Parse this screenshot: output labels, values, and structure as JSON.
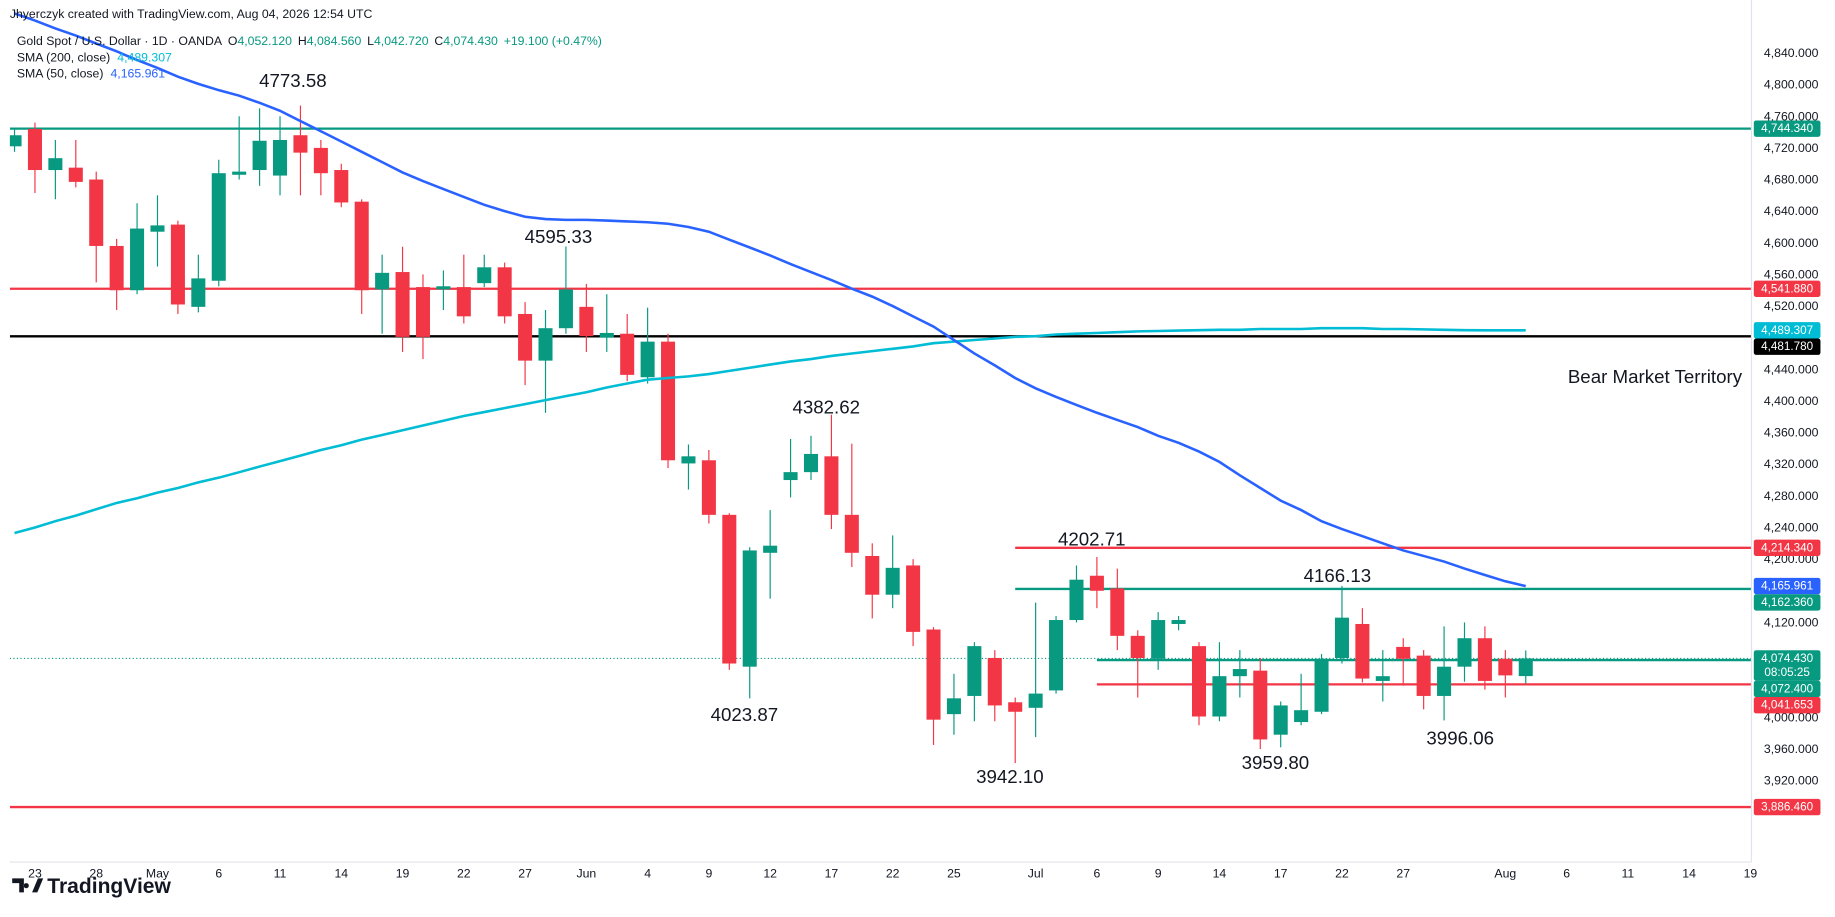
{
  "header": {
    "attribution": "Jhyerczyk created with TradingView.com, Aug 04, 2026 12:54 UTC",
    "symbol": "Gold Spot / U.S. Dollar · 1D · OANDA",
    "ohlc": [
      {
        "key": "O",
        "label": "4,052.120"
      },
      {
        "key": "H",
        "label": "4,084.560"
      },
      {
        "key": "L",
        "label": "4,042.720"
      },
      {
        "key": "C",
        "label": "4,074.430"
      }
    ],
    "change": "+19.100 (+0.47%)"
  },
  "footer": {
    "brand": "TradingView"
  },
  "chart_data": {
    "type": "candlestick",
    "categories": [
      null,
      "23",
      null,
      null,
      "28",
      null,
      null,
      "May",
      null,
      null,
      "6",
      null,
      null,
      "11",
      null,
      null,
      "14",
      null,
      null,
      "19",
      null,
      null,
      "22",
      null,
      null,
      "27",
      null,
      null,
      "Jun",
      null,
      null,
      "4",
      null,
      null,
      "9",
      null,
      null,
      "12",
      null,
      null,
      "17",
      null,
      null,
      "22",
      null,
      null,
      "25",
      null,
      null,
      null,
      "Jul",
      null,
      null,
      "6",
      null,
      null,
      "9",
      null,
      null,
      "14",
      null,
      null,
      "17",
      null,
      null,
      "22",
      null,
      null,
      "27",
      null,
      null,
      null,
      null,
      "Aug",
      null,
      null,
      "6",
      null,
      null,
      "11",
      null,
      null,
      "14",
      null,
      null,
      "19"
    ],
    "candles": {
      "up_color": "#089981",
      "down_color": "#f23645",
      "open": [
        4722,
        4744,
        4692,
        4695,
        4680,
        4596,
        4540,
        4614,
        4623,
        4519,
        4552,
        4686,
        4692,
        4685,
        4736,
        4720,
        4692,
        4652,
        4541,
        4563,
        4544,
        4541,
        4544,
        4549,
        4569,
        4510,
        4451,
        4492,
        4519,
        4480,
        4485,
        4430,
        4475,
        4321,
        4325,
        4256,
        4064,
        4208,
        4300,
        4310,
        4330,
        4256,
        4204,
        4155,
        4192,
        4111,
        4004,
        4027,
        4075,
        4019,
        4012,
        4034,
        4123,
        4179,
        4163,
        4103,
        4074,
        4118,
        4090,
        4001,
        4052,
        4059,
        3978,
        3994,
        4007,
        4075,
        4118,
        4046,
        4089,
        4078,
        4027,
        4064,
        4100,
        4074,
        4052.12,
        null,
        null,
        null,
        null,
        null,
        null,
        null,
        null,
        null,
        null,
        null
      ],
      "high": [
        4745,
        4752,
        4730,
        4730,
        4690,
        4605,
        4650,
        4660,
        4628,
        4585,
        4705,
        4760,
        4770,
        4760,
        4773.58,
        4730,
        4700,
        4655,
        4585,
        4595,
        4560,
        4565,
        4585,
        4585,
        4575,
        4525,
        4515,
        4595.33,
        4548,
        4535,
        4510,
        4518,
        4485,
        4345,
        4338,
        4258,
        4215,
        4262,
        4352,
        4356,
        4382.62,
        4346,
        4220,
        4230,
        4200,
        4114,
        4055,
        4095,
        4085,
        4025,
        4145,
        4128,
        4192,
        4202.71,
        4188,
        4110,
        4133,
        4128,
        4095,
        4095,
        4085,
        4075,
        4020,
        4055,
        4080,
        4166.13,
        4138,
        4085,
        4100,
        4085,
        4115,
        4120,
        4115,
        4085,
        4084.56,
        null,
        null,
        null,
        null,
        null,
        null,
        null,
        null,
        null,
        null,
        null
      ],
      "low": [
        4715,
        4663,
        4655,
        4670,
        4550,
        4515,
        4535,
        4570,
        4510,
        4512,
        4545,
        4680,
        4672,
        4660,
        4660,
        4660,
        4645,
        4510,
        4485,
        4462,
        4453,
        4515,
        4498,
        4544,
        4498,
        4420,
        4385,
        4485,
        4462,
        4462,
        4425,
        4422,
        4315,
        4288,
        4245,
        4060,
        4023.87,
        4150,
        4278,
        4300,
        4238,
        4190,
        4125,
        4138,
        4090,
        3965,
        3978,
        3995,
        3995,
        3942.1,
        3975,
        4030,
        4120,
        4138,
        4085,
        4025,
        4060,
        4110,
        3990,
        3995,
        4025,
        3959.8,
        3962,
        3990,
        4004,
        4068,
        4044,
        4020,
        4040,
        4010,
        3996.06,
        4045,
        4035,
        4025,
        4042.72,
        null,
        null,
        null,
        null,
        null,
        null,
        null,
        null,
        null,
        null,
        null
      ],
      "close": [
        4736,
        4692,
        4707,
        4677,
        4596,
        4540,
        4618,
        4622,
        4522,
        4555,
        4688,
        4690,
        4729,
        4730,
        4714,
        4688,
        4651,
        4540,
        4562,
        4481,
        4481,
        4545,
        4507,
        4569,
        4507,
        4451,
        4492,
        4541,
        4482,
        4486,
        4433,
        4475,
        4325,
        4330,
        4256,
        4068,
        4211,
        4217,
        4310,
        4333,
        4256,
        4208,
        4155,
        4189,
        4108,
        3997,
        4024,
        4090,
        4015,
        4007,
        4030,
        4123,
        4174,
        4160,
        4103,
        4075,
        4123,
        4123,
        4001,
        4052,
        4061,
        3972,
        4015,
        4009,
        4074,
        4126,
        4049,
        4052,
        4074,
        4027,
        4064,
        4100,
        4046,
        4053,
        4074.43,
        null,
        null,
        null,
        null,
        null,
        null,
        null,
        null,
        null,
        null,
        null
      ]
    },
    "indicators": [
      {
        "name": "SMA (200, close)",
        "color": "#00bcd4",
        "values": [
          4233,
          4240,
          4248,
          4255,
          4263,
          4271,
          4277,
          4284,
          4290,
          4297,
          4303,
          4310,
          4317,
          4324,
          4331,
          4338,
          4344,
          4351,
          4357,
          4363,
          4369,
          4375,
          4381,
          4386,
          4391,
          4396,
          4401,
          4406,
          4411,
          4417,
          4422,
          4427,
          4429,
          4431,
          4434,
          4438,
          4442,
          4446,
          4450,
          4453,
          4457,
          4460,
          4463,
          4466,
          4469,
          4473,
          4475,
          4477,
          4479,
          4481,
          4482,
          4484,
          4485,
          4486,
          4487,
          4488,
          4488.5,
          4489,
          4489.5,
          4490,
          4490,
          4491,
          4491,
          4491,
          4492,
          4492,
          4492,
          4491,
          4491,
          4490.5,
          4490,
          4489.5,
          4489.4,
          4489.3,
          4489.307,
          null,
          null,
          null,
          null,
          null,
          null,
          null,
          null,
          null,
          null,
          null
        ],
        "value_labels": [
          null,
          null,
          null,
          null,
          null,
          null,
          null,
          null,
          null,
          null,
          null,
          null,
          null,
          null,
          null,
          null,
          null,
          null,
          null,
          null,
          null,
          null,
          null,
          null,
          null,
          null,
          null,
          null,
          null,
          null,
          null,
          null,
          null,
          null,
          null,
          null,
          null,
          null,
          null,
          null,
          null,
          null,
          null,
          null,
          null,
          null,
          null,
          null,
          null,
          null,
          null,
          null,
          null,
          null,
          null,
          null,
          null,
          null,
          null,
          null,
          null,
          null,
          null,
          null,
          null,
          null,
          null,
          null,
          null,
          null,
          null,
          null,
          null,
          null,
          "4,489.307",
          null,
          null,
          null,
          null,
          null,
          null,
          null,
          null,
          null,
          null,
          null
        ]
      },
      {
        "name": "SMA (50, close)",
        "color": "#2962ff",
        "values": [
          4890,
          4881,
          4871,
          4862,
          4852,
          4842,
          4831,
          4821,
          4810,
          4801,
          4793,
          4786,
          4777,
          4767,
          4754,
          4741,
          4728,
          4715,
          4702,
          4689,
          4678,
          4668,
          4658,
          4648,
          4640,
          4633,
          4630,
          4629,
          4629,
          4628,
          4627,
          4626,
          4624,
          4620,
          4614,
          4604,
          4594,
          4584,
          4573,
          4563,
          4553,
          4542,
          4532,
          4520,
          4507,
          4494,
          4477,
          4460,
          4445,
          4429,
          4416,
          4405,
          4395,
          4385,
          4376,
          4367,
          4356,
          4347,
          4336,
          4323,
          4306,
          4290,
          4274,
          4262,
          4248,
          4238,
          4229,
          4220,
          4211,
          4204,
          4197,
          4188,
          4180,
          4172,
          4165.961,
          null,
          null,
          null,
          null,
          null,
          null,
          null,
          null,
          null,
          null,
          null
        ],
        "value_labels": [
          null,
          null,
          null,
          null,
          null,
          null,
          null,
          null,
          null,
          null,
          null,
          null,
          null,
          null,
          null,
          null,
          null,
          null,
          null,
          null,
          null,
          null,
          null,
          null,
          null,
          null,
          null,
          null,
          null,
          null,
          null,
          null,
          null,
          null,
          null,
          null,
          null,
          null,
          null,
          null,
          null,
          null,
          null,
          null,
          null,
          null,
          null,
          null,
          null,
          null,
          null,
          null,
          null,
          null,
          null,
          null,
          null,
          null,
          null,
          null,
          null,
          null,
          null,
          null,
          null,
          null,
          null,
          null,
          null,
          null,
          null,
          null,
          null,
          null,
          "4,165.961",
          null,
          null,
          null,
          null,
          null,
          null,
          null,
          null,
          null,
          null,
          null
        ]
      }
    ],
    "levels": [
      {
        "value": 4744.34,
        "label": "4,744.340",
        "color": "#089981"
      },
      {
        "value": 4541.88,
        "label": "4,541.880",
        "color": "#f23645"
      },
      {
        "value": 4481.78,
        "label": "4,481.780",
        "color": "#000000"
      },
      {
        "value": 4214.34,
        "label": "4,214.340",
        "color": "#f23645",
        "start_index": 49
      },
      {
        "value": 4162.36,
        "label": "4,162.360",
        "color": "#089981",
        "start_index": 49
      },
      {
        "value": 4072.4,
        "label": "4,072.400",
        "color": "#089981",
        "start_index": 53
      },
      {
        "value": 4041.653,
        "label": "4,041.653",
        "color": "#f23645",
        "start_index": 53
      },
      {
        "value": 3886.46,
        "label": "3,886.460",
        "color": "#f23645"
      }
    ],
    "last_price": {
      "value": 4074.43,
      "label": "4,074.430",
      "countdown": "08:05:25",
      "color": "#089981"
    },
    "annotations": [
      "4773.58",
      "4595.33",
      "4382.62",
      "4023.87",
      "4202.71",
      "4166.13",
      "3942.10",
      "3959.80",
      "3996.06",
      "Bear Market Territory"
    ],
    "ylim": [
      3817,
      4907
    ],
    "yticks": [
      {
        "value": 4840,
        "label": "4,840.000"
      },
      {
        "value": 4800,
        "label": "4,800.000"
      },
      {
        "value": 4760,
        "label": "4,760.000"
      },
      {
        "value": 4720,
        "label": "4,720.000"
      },
      {
        "value": 4680,
        "label": "4,680.000"
      },
      {
        "value": 4640,
        "label": "4,640.000"
      },
      {
        "value": 4600,
        "label": "4,600.000"
      },
      {
        "value": 4560,
        "label": "4,560.000"
      },
      {
        "value": 4520,
        "label": "4,520.000"
      },
      {
        "value": 4440,
        "label": "4,440.000"
      },
      {
        "value": 4400,
        "label": "4,400.000"
      },
      {
        "value": 4360,
        "label": "4,360.000"
      },
      {
        "value": 4320,
        "label": "4,320.000"
      },
      {
        "value": 4280,
        "label": "4,280.000"
      },
      {
        "value": 4240,
        "label": "4,240.000"
      },
      {
        "value": 4200,
        "label": "4,200.000"
      },
      {
        "value": 4120,
        "label": "4,120.000"
      },
      {
        "value": 4000,
        "label": "4,000.000"
      },
      {
        "value": 3960,
        "label": "3,960.000"
      },
      {
        "value": 3920,
        "label": "3,920.000"
      }
    ],
    "grid": false
  }
}
